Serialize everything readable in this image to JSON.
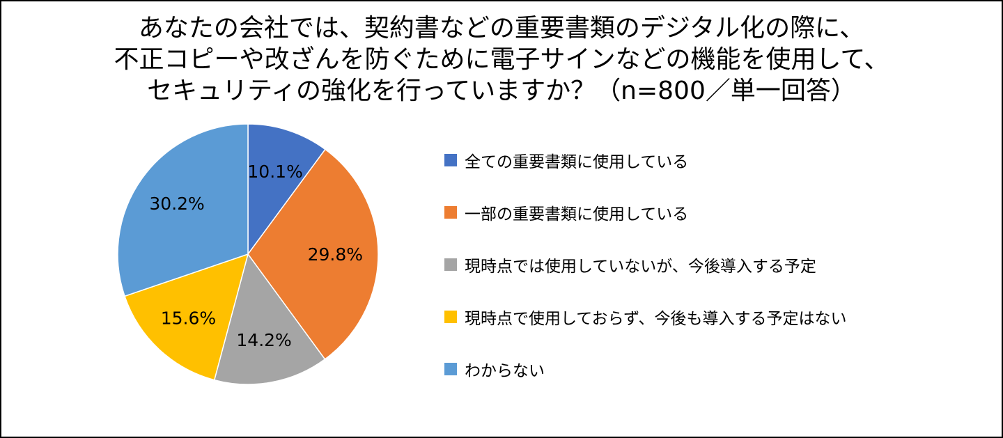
{
  "chart_data": {
    "type": "pie",
    "title_lines": [
      "あなたの会社では、契約書などの重要書類のデジタル化の際に、",
      "不正コピーや改ざんを防ぐために電子サインなどの機能を使用して、",
      "セキュリティの強化を行っていますか？（n=800／単一回答）"
    ],
    "categories": [
      "全ての重要書類に使用している",
      "一部の重要書類に使用している",
      "現時点では使用していないが、今後導入する予定",
      "現時点で使用しておらず、今後も導入する予定はない",
      "わからない"
    ],
    "values": [
      10.1,
      29.8,
      14.2,
      15.6,
      30.2
    ],
    "labels": [
      "10.1%",
      "29.8%",
      "14.2%",
      "15.6%",
      "30.2%"
    ],
    "colors": [
      "#4472C4",
      "#ED7D31",
      "#A5A5A5",
      "#FFC000",
      "#5B9BD5"
    ],
    "legend_position": "right",
    "start": "top-clockwise"
  }
}
